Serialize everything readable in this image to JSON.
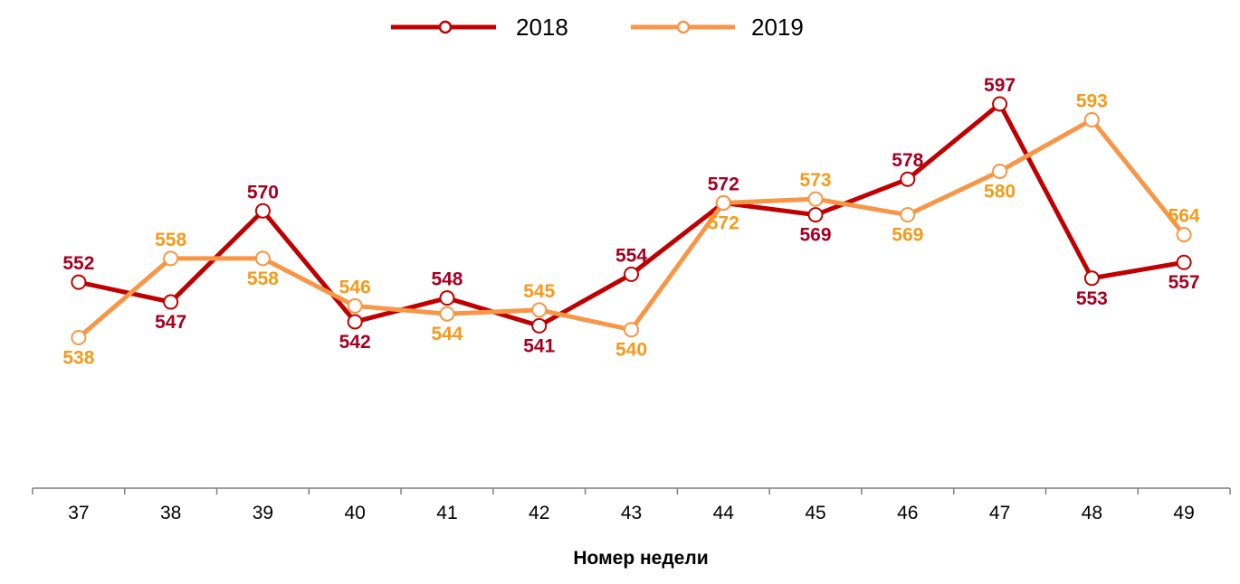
{
  "chart_data": {
    "type": "line",
    "title": "",
    "xlabel": "Номер недели",
    "ylabel": "",
    "categories": [
      "37",
      "38",
      "39",
      "40",
      "41",
      "42",
      "43",
      "44",
      "45",
      "46",
      "47",
      "48",
      "49"
    ],
    "ylim": [
      500,
      610
    ],
    "grid": false,
    "legend_position": "top",
    "series": [
      {
        "name": "2018",
        "color": "#C00000",
        "label_color": "#A50021",
        "values": [
          552,
          547,
          570,
          542,
          548,
          541,
          554,
          572,
          569,
          578,
          597,
          553,
          557
        ]
      },
      {
        "name": "2019",
        "color": "#F79646",
        "label_color": "#F59A1A",
        "values": [
          538,
          558,
          558,
          546,
          544,
          545,
          540,
          572,
          573,
          569,
          580,
          593,
          564
        ]
      }
    ]
  }
}
